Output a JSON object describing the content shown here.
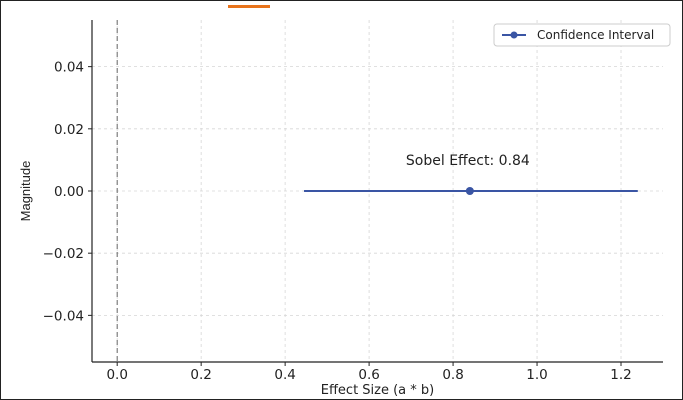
{
  "chart_data": {
    "type": "scatter",
    "title": "",
    "xlabel": "Effect Size (a * b)",
    "ylabel": "Magnitude",
    "xlim": [
      -0.06,
      1.3
    ],
    "ylim": [
      -0.055,
      0.055
    ],
    "xticks": [
      0.0,
      0.2,
      0.4,
      0.6,
      0.8,
      1.0,
      1.2
    ],
    "xtick_labels": [
      "0.0",
      "0.2",
      "0.4",
      "0.6",
      "0.8",
      "1.0",
      "1.2"
    ],
    "yticks": [
      0.04,
      0.02,
      0.0,
      -0.02,
      -0.04
    ],
    "ytick_labels": [
      "0.04",
      "0.02",
      "0.00",
      "−0.02",
      "−0.04"
    ],
    "grid": true,
    "reference_line": {
      "x": 0.0,
      "style": "dashed"
    },
    "series": [
      {
        "name": "Confidence Interval",
        "point": {
          "x": 0.84,
          "y": 0.0
        },
        "ci": [
          0.445,
          1.24
        ],
        "color": "#3a55a4"
      }
    ],
    "annotation": {
      "text": "Sobel Effect: 0.84",
      "x": 0.84,
      "y": 0.01
    },
    "legend_position": "top-right",
    "accent_color": "#e8741c"
  }
}
